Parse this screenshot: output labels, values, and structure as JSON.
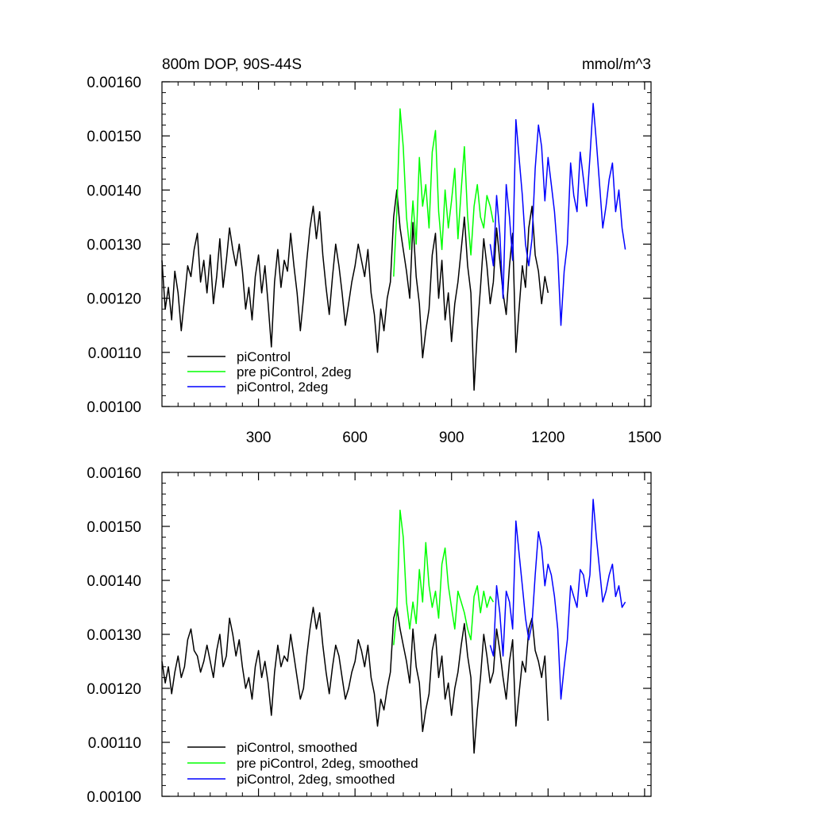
{
  "chart_data": [
    {
      "type": "line",
      "title": "800m DOP, 90S-44S",
      "units": "mmol/m^3",
      "xlim": [
        0,
        1520
      ],
      "ylim": [
        0.001,
        0.0016
      ],
      "x_ticks": [
        300,
        600,
        900,
        1200,
        1500
      ],
      "x_tick_labels": [
        "300",
        "600",
        "900",
        "1200",
        "1500"
      ],
      "y_ticks": [
        0.001,
        0.0011,
        0.0012,
        0.0013,
        0.0014,
        0.0015,
        0.0016
      ],
      "y_tick_labels": [
        "0.00100",
        "0.00110",
        "0.00120",
        "0.00130",
        "0.00140",
        "0.00150",
        "0.00160"
      ],
      "legend_position": "bottom-left",
      "series": [
        {
          "name": "piControl",
          "color": "#000000",
          "x_start": 0,
          "x_step": 10,
          "values": [
            0.00127,
            0.00118,
            0.00122,
            0.00116,
            0.00125,
            0.00121,
            0.00114,
            0.0012,
            0.00126,
            0.00124,
            0.00129,
            0.00132,
            0.00123,
            0.00127,
            0.00121,
            0.00128,
            0.00119,
            0.00124,
            0.00131,
            0.00122,
            0.00127,
            0.00133,
            0.00129,
            0.00126,
            0.0013,
            0.00125,
            0.00118,
            0.00122,
            0.00116,
            0.00124,
            0.00128,
            0.00121,
            0.00126,
            0.00119,
            0.00111,
            0.00123,
            0.00129,
            0.00122,
            0.00127,
            0.00125,
            0.00132,
            0.00126,
            0.00121,
            0.00114,
            0.0012,
            0.00127,
            0.00133,
            0.00137,
            0.00131,
            0.00136,
            0.00128,
            0.00122,
            0.00117,
            0.00124,
            0.0013,
            0.00126,
            0.00121,
            0.00115,
            0.00119,
            0.00123,
            0.00126,
            0.0013,
            0.00127,
            0.00124,
            0.00129,
            0.00121,
            0.00117,
            0.0011,
            0.00118,
            0.00114,
            0.0012,
            0.00123,
            0.00135,
            0.0014,
            0.00133,
            0.00129,
            0.00125,
            0.0012,
            0.00134,
            0.00124,
            0.00119,
            0.00109,
            0.00114,
            0.00118,
            0.00128,
            0.00132,
            0.0012,
            0.00127,
            0.00116,
            0.00121,
            0.00112,
            0.00119,
            0.00123,
            0.00129,
            0.00135,
            0.00126,
            0.00121,
            0.00103,
            0.00114,
            0.00122,
            0.00131,
            0.00126,
            0.00119,
            0.00123,
            0.00133,
            0.00127,
            0.00121,
            0.00117,
            0.00126,
            0.00132,
            0.0011,
            0.00118,
            0.00126,
            0.00122,
            0.00133,
            0.00137,
            0.00128,
            0.00125,
            0.00119,
            0.00124,
            0.00121
          ]
        },
        {
          "name": "pre piControl, 2deg",
          "color": "#00ff00",
          "x_start": 720,
          "x_step": 10,
          "values": [
            0.00124,
            0.00136,
            0.00155,
            0.00148,
            0.00135,
            0.00129,
            0.00138,
            0.0013,
            0.00146,
            0.00137,
            0.00141,
            0.00133,
            0.00147,
            0.00151,
            0.00136,
            0.00129,
            0.0014,
            0.00133,
            0.00138,
            0.00144,
            0.00131,
            0.0014,
            0.00148,
            0.00135,
            0.00128,
            0.00137,
            0.00141,
            0.00135,
            0.00133,
            0.00139,
            0.00137,
            0.00134
          ]
        },
        {
          "name": "piControl, 2deg",
          "color": "#0000ff",
          "x_start": 1020,
          "x_step": 10,
          "values": [
            0.0013,
            0.00126,
            0.00139,
            0.00132,
            0.0012,
            0.00141,
            0.00135,
            0.00127,
            0.00153,
            0.00146,
            0.00139,
            0.0013,
            0.00126,
            0.00131,
            0.00144,
            0.00152,
            0.00148,
            0.00138,
            0.00146,
            0.00141,
            0.00136,
            0.00128,
            0.00115,
            0.00125,
            0.0013,
            0.00145,
            0.00139,
            0.00136,
            0.00147,
            0.00142,
            0.00137,
            0.00146,
            0.00156,
            0.00149,
            0.00141,
            0.00133,
            0.00137,
            0.00142,
            0.00145,
            0.00136,
            0.0014,
            0.00133,
            0.00129
          ]
        }
      ]
    },
    {
      "type": "line",
      "xlim": [
        0,
        1520
      ],
      "ylim": [
        0.001,
        0.0016
      ],
      "x_ticks": [
        300,
        600,
        900,
        1200,
        1500
      ],
      "y_ticks": [
        0.001,
        0.0011,
        0.0012,
        0.0013,
        0.0014,
        0.0015,
        0.0016
      ],
      "y_tick_labels": [
        "0.00100",
        "0.00110",
        "0.00120",
        "0.00130",
        "0.00140",
        "0.00150",
        "0.00160"
      ],
      "legend_position": "bottom-left",
      "series": [
        {
          "name": "piControl, smoothed",
          "color": "#000000",
          "x_start": 0,
          "x_step": 10,
          "values": [
            0.00125,
            0.00121,
            0.00124,
            0.00119,
            0.00123,
            0.00126,
            0.00122,
            0.00124,
            0.00129,
            0.00131,
            0.00127,
            0.00126,
            0.00123,
            0.00125,
            0.00128,
            0.00125,
            0.00122,
            0.00127,
            0.0013,
            0.00124,
            0.00126,
            0.00133,
            0.0013,
            0.00126,
            0.00129,
            0.00124,
            0.0012,
            0.00122,
            0.00118,
            0.00124,
            0.00127,
            0.00122,
            0.00125,
            0.00121,
            0.00115,
            0.00123,
            0.00128,
            0.00124,
            0.00126,
            0.00125,
            0.0013,
            0.00126,
            0.00122,
            0.00118,
            0.0012,
            0.00126,
            0.00131,
            0.00135,
            0.00131,
            0.00134,
            0.00128,
            0.00123,
            0.00119,
            0.00124,
            0.00128,
            0.00126,
            0.00122,
            0.00118,
            0.0012,
            0.00123,
            0.00125,
            0.00129,
            0.00127,
            0.00124,
            0.00128,
            0.00122,
            0.00119,
            0.00113,
            0.00118,
            0.00116,
            0.0012,
            0.00123,
            0.00133,
            0.00135,
            0.00131,
            0.00128,
            0.00125,
            0.00121,
            0.00131,
            0.00124,
            0.00121,
            0.00112,
            0.00116,
            0.00119,
            0.00127,
            0.0013,
            0.00122,
            0.00126,
            0.00118,
            0.00121,
            0.00115,
            0.0012,
            0.00123,
            0.00128,
            0.00132,
            0.00126,
            0.00122,
            0.00108,
            0.00116,
            0.00122,
            0.0013,
            0.00126,
            0.00121,
            0.00123,
            0.00131,
            0.00127,
            0.00122,
            0.00118,
            0.00125,
            0.00129,
            0.00113,
            0.00119,
            0.00125,
            0.00123,
            0.00131,
            0.00133,
            0.00127,
            0.00125,
            0.00122,
            0.00126,
            0.00114
          ]
        },
        {
          "name": "pre piControl, 2deg, smoothed",
          "color": "#00ff00",
          "x_start": 720,
          "x_step": 10,
          "values": [
            0.00128,
            0.00134,
            0.00153,
            0.00148,
            0.00136,
            0.00131,
            0.00136,
            0.00132,
            0.00142,
            0.00136,
            0.00147,
            0.00139,
            0.00135,
            0.00138,
            0.00133,
            0.00143,
            0.00146,
            0.00139,
            0.00135,
            0.00131,
            0.00138,
            0.00136,
            0.00134,
            0.00131,
            0.00129,
            0.00137,
            0.00139,
            0.00134,
            0.00138,
            0.00135,
            0.00137,
            0.00136
          ]
        },
        {
          "name": "piControl, 2deg, smoothed",
          "color": "#0000ff",
          "x_start": 1020,
          "x_step": 10,
          "values": [
            0.00128,
            0.00126,
            0.00139,
            0.00134,
            0.00126,
            0.00138,
            0.00136,
            0.00131,
            0.00151,
            0.00145,
            0.00139,
            0.00133,
            0.00129,
            0.00132,
            0.00141,
            0.00149,
            0.00146,
            0.00139,
            0.00143,
            0.00141,
            0.00137,
            0.00131,
            0.00118,
            0.00124,
            0.00129,
            0.00139,
            0.00137,
            0.00135,
            0.00142,
            0.00141,
            0.00137,
            0.00141,
            0.00155,
            0.00148,
            0.00142,
            0.00136,
            0.00138,
            0.00141,
            0.00143,
            0.00137,
            0.00139,
            0.00135,
            0.00136
          ]
        }
      ]
    }
  ]
}
